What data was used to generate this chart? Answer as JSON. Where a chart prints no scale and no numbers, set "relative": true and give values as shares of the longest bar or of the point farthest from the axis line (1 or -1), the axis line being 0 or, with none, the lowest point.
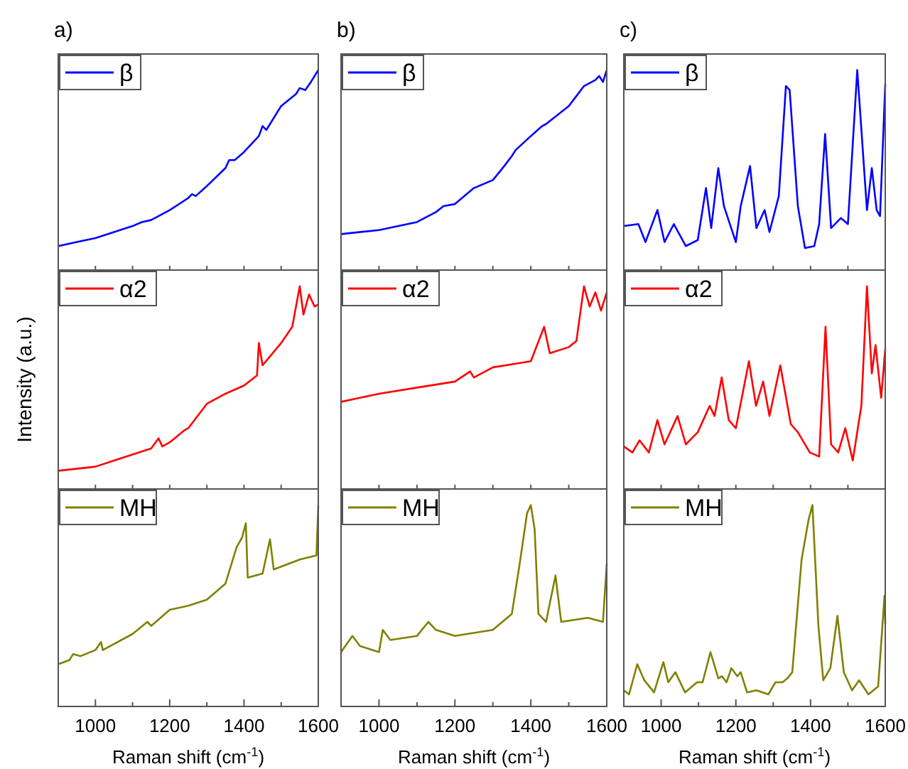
{
  "chart_data": [
    {
      "type": "line",
      "title": "a)",
      "relative": true,
      "xlim": [
        900,
        1600
      ],
      "xticks": [
        {
          "value": 1000,
          "label": null
        },
        {
          "value": 1100,
          "label": null
        },
        {
          "value": 1200,
          "label": null
        },
        {
          "value": 1300,
          "label": null
        },
        {
          "value": 1400,
          "label": null
        },
        {
          "value": 1500,
          "label": null
        }
      ],
      "tick_labels": false,
      "legend": "top left",
      "x": [
        900,
        950,
        1000,
        1050,
        1100,
        1125,
        1150,
        1200,
        1250,
        1260,
        1270,
        1300,
        1350,
        1360,
        1375,
        1400,
        1440,
        1450,
        1460,
        1500,
        1540,
        1550,
        1565,
        1580,
        1600
      ],
      "series": [
        {
          "name": "β",
          "color": "#0000ff",
          "values": [
            0.12,
            0.14,
            0.16,
            0.19,
            0.22,
            0.24,
            0.25,
            0.3,
            0.36,
            0.38,
            0.37,
            0.42,
            0.51,
            0.55,
            0.55,
            0.59,
            0.67,
            0.72,
            0.7,
            0.82,
            0.88,
            0.91,
            0.9,
            0.94,
            1.0
          ]
        }
      ]
    },
    {
      "type": "line",
      "ylabel": "Intensity (a.u.)",
      "relative": true,
      "xlim": [
        900,
        1600
      ],
      "xticks": [
        {
          "value": 1000,
          "label": null
        },
        {
          "value": 1100,
          "label": null
        },
        {
          "value": 1200,
          "label": null
        },
        {
          "value": 1300,
          "label": null
        },
        {
          "value": 1400,
          "label": null
        },
        {
          "value": 1500,
          "label": null
        }
      ],
      "tick_labels": false,
      "legend": "top left",
      "x": [
        900,
        1000,
        1050,
        1100,
        1150,
        1170,
        1180,
        1200,
        1240,
        1250,
        1300,
        1350,
        1400,
        1435,
        1440,
        1450,
        1500,
        1530,
        1550,
        1560,
        1575,
        1590,
        1600
      ],
      "series": [
        {
          "name": "α2",
          "color": "#ff0000",
          "values": [
            0.09,
            0.11,
            0.14,
            0.17,
            0.2,
            0.25,
            0.21,
            0.23,
            0.29,
            0.3,
            0.42,
            0.47,
            0.51,
            0.56,
            0.72,
            0.61,
            0.72,
            0.8,
            1.0,
            0.86,
            0.96,
            0.9,
            0.91
          ]
        }
      ]
    },
    {
      "type": "line",
      "xlabel": "Raman shift (cm$^{-1}$)",
      "relative": true,
      "xlim": [
        900,
        1600
      ],
      "xticks": [
        1000,
        {
          "value": 1100,
          "label": null
        },
        1200,
        {
          "value": 1300,
          "label": null
        },
        1400,
        {
          "value": 1500,
          "label": null
        },
        1600
      ],
      "tick_labels": "x",
      "legend": "top left",
      "x": [
        900,
        930,
        940,
        960,
        1000,
        1015,
        1020,
        1100,
        1140,
        1150,
        1200,
        1250,
        1300,
        1350,
        1380,
        1395,
        1405,
        1410,
        1450,
        1470,
        1480,
        1550,
        1595,
        1600
      ],
      "series": [
        {
          "name": "MH",
          "color": "#808000",
          "values": [
            0.21,
            0.23,
            0.26,
            0.25,
            0.28,
            0.32,
            0.28,
            0.36,
            0.42,
            0.4,
            0.48,
            0.5,
            0.53,
            0.61,
            0.79,
            0.84,
            0.91,
            0.64,
            0.66,
            0.83,
            0.68,
            0.73,
            0.75,
            1.0
          ]
        }
      ]
    },
    {
      "type": "line",
      "title": "b)",
      "relative": true,
      "xlim": [
        900,
        1600
      ],
      "xticks": [
        {
          "value": 1000,
          "label": null
        },
        {
          "value": 1100,
          "label": null
        },
        {
          "value": 1200,
          "label": null
        },
        {
          "value": 1300,
          "label": null
        },
        {
          "value": 1400,
          "label": null
        },
        {
          "value": 1500,
          "label": null
        }
      ],
      "tick_labels": false,
      "legend": "top left",
      "x": [
        900,
        1000,
        1100,
        1150,
        1170,
        1200,
        1250,
        1300,
        1330,
        1350,
        1360,
        1400,
        1430,
        1440,
        1500,
        1520,
        1540,
        1570,
        1580,
        1590,
        1600
      ],
      "series": [
        {
          "name": "β",
          "color": "#0000ff",
          "values": [
            0.18,
            0.2,
            0.24,
            0.29,
            0.32,
            0.33,
            0.41,
            0.45,
            0.52,
            0.57,
            0.6,
            0.67,
            0.72,
            0.73,
            0.82,
            0.87,
            0.92,
            0.95,
            0.97,
            0.94,
            1.0
          ]
        }
      ]
    },
    {
      "type": "line",
      "relative": true,
      "xlim": [
        900,
        1600
      ],
      "xticks": [
        {
          "value": 1000,
          "label": null
        },
        {
          "value": 1100,
          "label": null
        },
        {
          "value": 1200,
          "label": null
        },
        {
          "value": 1300,
          "label": null
        },
        {
          "value": 1400,
          "label": null
        },
        {
          "value": 1500,
          "label": null
        }
      ],
      "tick_labels": false,
      "legend": "top left",
      "x": [
        900,
        1000,
        1100,
        1200,
        1240,
        1250,
        1300,
        1400,
        1435,
        1450,
        1500,
        1520,
        1540,
        1555,
        1570,
        1585,
        1600
      ],
      "series": [
        {
          "name": "α2",
          "color": "#ff0000",
          "values": [
            0.43,
            0.47,
            0.5,
            0.53,
            0.58,
            0.55,
            0.6,
            0.63,
            0.8,
            0.67,
            0.7,
            0.73,
            1.0,
            0.9,
            0.97,
            0.88,
            0.97
          ]
        }
      ]
    },
    {
      "type": "line",
      "xlabel": "Raman shift (cm$^{-1}$)",
      "relative": true,
      "xlim": [
        900,
        1600
      ],
      "xticks": [
        1000,
        {
          "value": 1100,
          "label": null
        },
        1200,
        {
          "value": 1300,
          "label": null
        },
        1400,
        {
          "value": 1500,
          "label": null
        },
        1600
      ],
      "tick_labels": "x",
      "legend": "top left",
      "x": [
        900,
        930,
        950,
        1000,
        1010,
        1030,
        1100,
        1130,
        1150,
        1200,
        1300,
        1350,
        1370,
        1390,
        1400,
        1410,
        1420,
        1440,
        1465,
        1480,
        1550,
        1590,
        1600
      ],
      "series": [
        {
          "name": "MH",
          "color": "#808000",
          "values": [
            0.27,
            0.35,
            0.3,
            0.27,
            0.38,
            0.33,
            0.35,
            0.42,
            0.38,
            0.35,
            0.38,
            0.46,
            0.7,
            0.96,
            1.0,
            0.88,
            0.46,
            0.42,
            0.65,
            0.42,
            0.44,
            0.42,
            0.71
          ]
        }
      ]
    },
    {
      "type": "line",
      "title": "c)",
      "relative": true,
      "xlim": [
        900,
        1600
      ],
      "xticks": [
        {
          "value": 1000,
          "label": null
        },
        {
          "value": 1100,
          "label": null
        },
        {
          "value": 1200,
          "label": null
        },
        {
          "value": 1300,
          "label": null
        },
        {
          "value": 1400,
          "label": null
        },
        {
          "value": 1500,
          "label": null
        }
      ],
      "tick_labels": false,
      "legend": "top left",
      "x": [
        900,
        939,
        958,
        990,
        1009,
        1034,
        1066,
        1098,
        1120,
        1134,
        1153,
        1168,
        1200,
        1213,
        1238,
        1255,
        1277,
        1290,
        1315,
        1334,
        1344,
        1366,
        1385,
        1410,
        1423,
        1439,
        1455,
        1481,
        1500,
        1525,
        1551,
        1564,
        1577,
        1586,
        1600
      ],
      "series": [
        {
          "name": "β",
          "color": "#0000ff",
          "values": [
            0.22,
            0.23,
            0.14,
            0.3,
            0.14,
            0.23,
            0.12,
            0.15,
            0.41,
            0.21,
            0.51,
            0.32,
            0.14,
            0.32,
            0.52,
            0.21,
            0.3,
            0.19,
            0.37,
            0.92,
            0.9,
            0.32,
            0.11,
            0.12,
            0.23,
            0.68,
            0.21,
            0.26,
            0.23,
            1.0,
            0.3,
            0.51,
            0.3,
            0.27,
            0.93
          ]
        }
      ]
    },
    {
      "type": "line",
      "relative": true,
      "xlim": [
        900,
        1600
      ],
      "xticks": [
        {
          "value": 1000,
          "label": null
        },
        {
          "value": 1100,
          "label": null
        },
        {
          "value": 1200,
          "label": null
        },
        {
          "value": 1300,
          "label": null
        },
        {
          "value": 1400,
          "label": null
        },
        {
          "value": 1500,
          "label": null
        }
      ],
      "tick_labels": false,
      "legend": "top left",
      "x": [
        900,
        923,
        942,
        967,
        990,
        1009,
        1044,
        1066,
        1098,
        1130,
        1143,
        1162,
        1181,
        1200,
        1235,
        1254,
        1273,
        1290,
        1319,
        1347,
        1366,
        1398,
        1423,
        1440,
        1455,
        1474,
        1493,
        1513,
        1536,
        1551,
        1564,
        1574,
        1589,
        1600
      ],
      "series": [
        {
          "name": "α2",
          "color": "#ff0000",
          "values": [
            0.21,
            0.18,
            0.24,
            0.18,
            0.34,
            0.22,
            0.36,
            0.22,
            0.28,
            0.41,
            0.36,
            0.55,
            0.34,
            0.3,
            0.63,
            0.41,
            0.53,
            0.36,
            0.61,
            0.32,
            0.28,
            0.18,
            0.16,
            0.8,
            0.22,
            0.18,
            0.3,
            0.14,
            0.41,
            1.0,
            0.57,
            0.71,
            0.45,
            0.69
          ]
        }
      ]
    },
    {
      "type": "line",
      "xlabel": "Raman shift (cm$^{-1}$)",
      "relative": true,
      "xlim": [
        900,
        1600
      ],
      "xticks": [
        1000,
        {
          "value": 1100,
          "label": null
        },
        1200,
        {
          "value": 1300,
          "label": null
        },
        1400,
        {
          "value": 1500,
          "label": null
        },
        1600
      ],
      "tick_labels": "x",
      "legend": "top left",
      "x": [
        900,
        914,
        936,
        955,
        981,
        1006,
        1019,
        1038,
        1064,
        1096,
        1111,
        1132,
        1153,
        1163,
        1175,
        1188,
        1204,
        1213,
        1230,
        1255,
        1287,
        1306,
        1325,
        1338,
        1351,
        1376,
        1395,
        1405,
        1421,
        1434,
        1453,
        1472,
        1489,
        1511,
        1530,
        1555,
        1581,
        1598,
        1600
      ],
      "series": [
        {
          "name": "MH",
          "color": "#808000",
          "values": [
            0.08,
            0.06,
            0.21,
            0.13,
            0.07,
            0.22,
            0.12,
            0.17,
            0.07,
            0.12,
            0.12,
            0.27,
            0.14,
            0.15,
            0.12,
            0.19,
            0.15,
            0.17,
            0.07,
            0.08,
            0.06,
            0.12,
            0.12,
            0.14,
            0.17,
            0.73,
            0.93,
            1.0,
            0.4,
            0.13,
            0.19,
            0.45,
            0.17,
            0.08,
            0.13,
            0.06,
            0.1,
            0.55,
            0.41
          ]
        }
      ]
    }
  ]
}
